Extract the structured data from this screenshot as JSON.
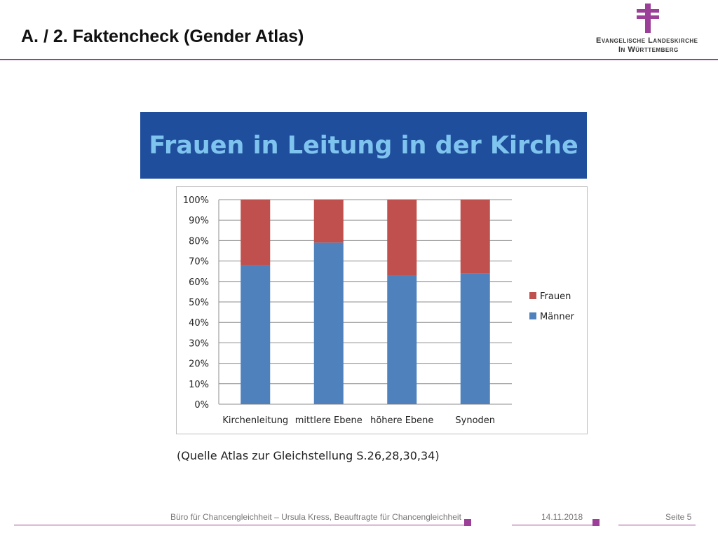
{
  "header": {
    "title": "A. / 2. Faktencheck (Gender Atlas)",
    "logo_line1": "Evangelische Landeskirche",
    "logo_line2": "In Württemberg",
    "accent_color": "#9c3f98"
  },
  "banner": {
    "text": "Frauen in Leitung in der Kirche",
    "background": "#1f4e9c",
    "text_color": "#7fc3ef"
  },
  "chart_data": {
    "type": "bar",
    "stacked": true,
    "categories": [
      "Kirchenleitung",
      "mittlere Ebene",
      "höhere Ebene",
      "Synoden"
    ],
    "series": [
      {
        "name": "Männer",
        "color": "#4f81bd",
        "values": [
          68,
          79,
          63,
          64
        ]
      },
      {
        "name": "Frauen",
        "color": "#c0504d",
        "values": [
          32,
          21,
          37,
          36
        ]
      }
    ],
    "yticks": [
      "0%",
      "10%",
      "20%",
      "30%",
      "40%",
      "50%",
      "60%",
      "70%",
      "80%",
      "90%",
      "100%"
    ],
    "ylim": [
      0,
      100
    ],
    "grid": true,
    "legend_position": "right"
  },
  "source_note": "(Quelle Atlas zur Gleichstellung S.26,28,30,34)",
  "footer": {
    "author": "Büro für Chancengleichheit – Ursula Kress, Beauftragte für Chancengleichheit",
    "date": "14.11.2018",
    "page": "Seite 5"
  }
}
